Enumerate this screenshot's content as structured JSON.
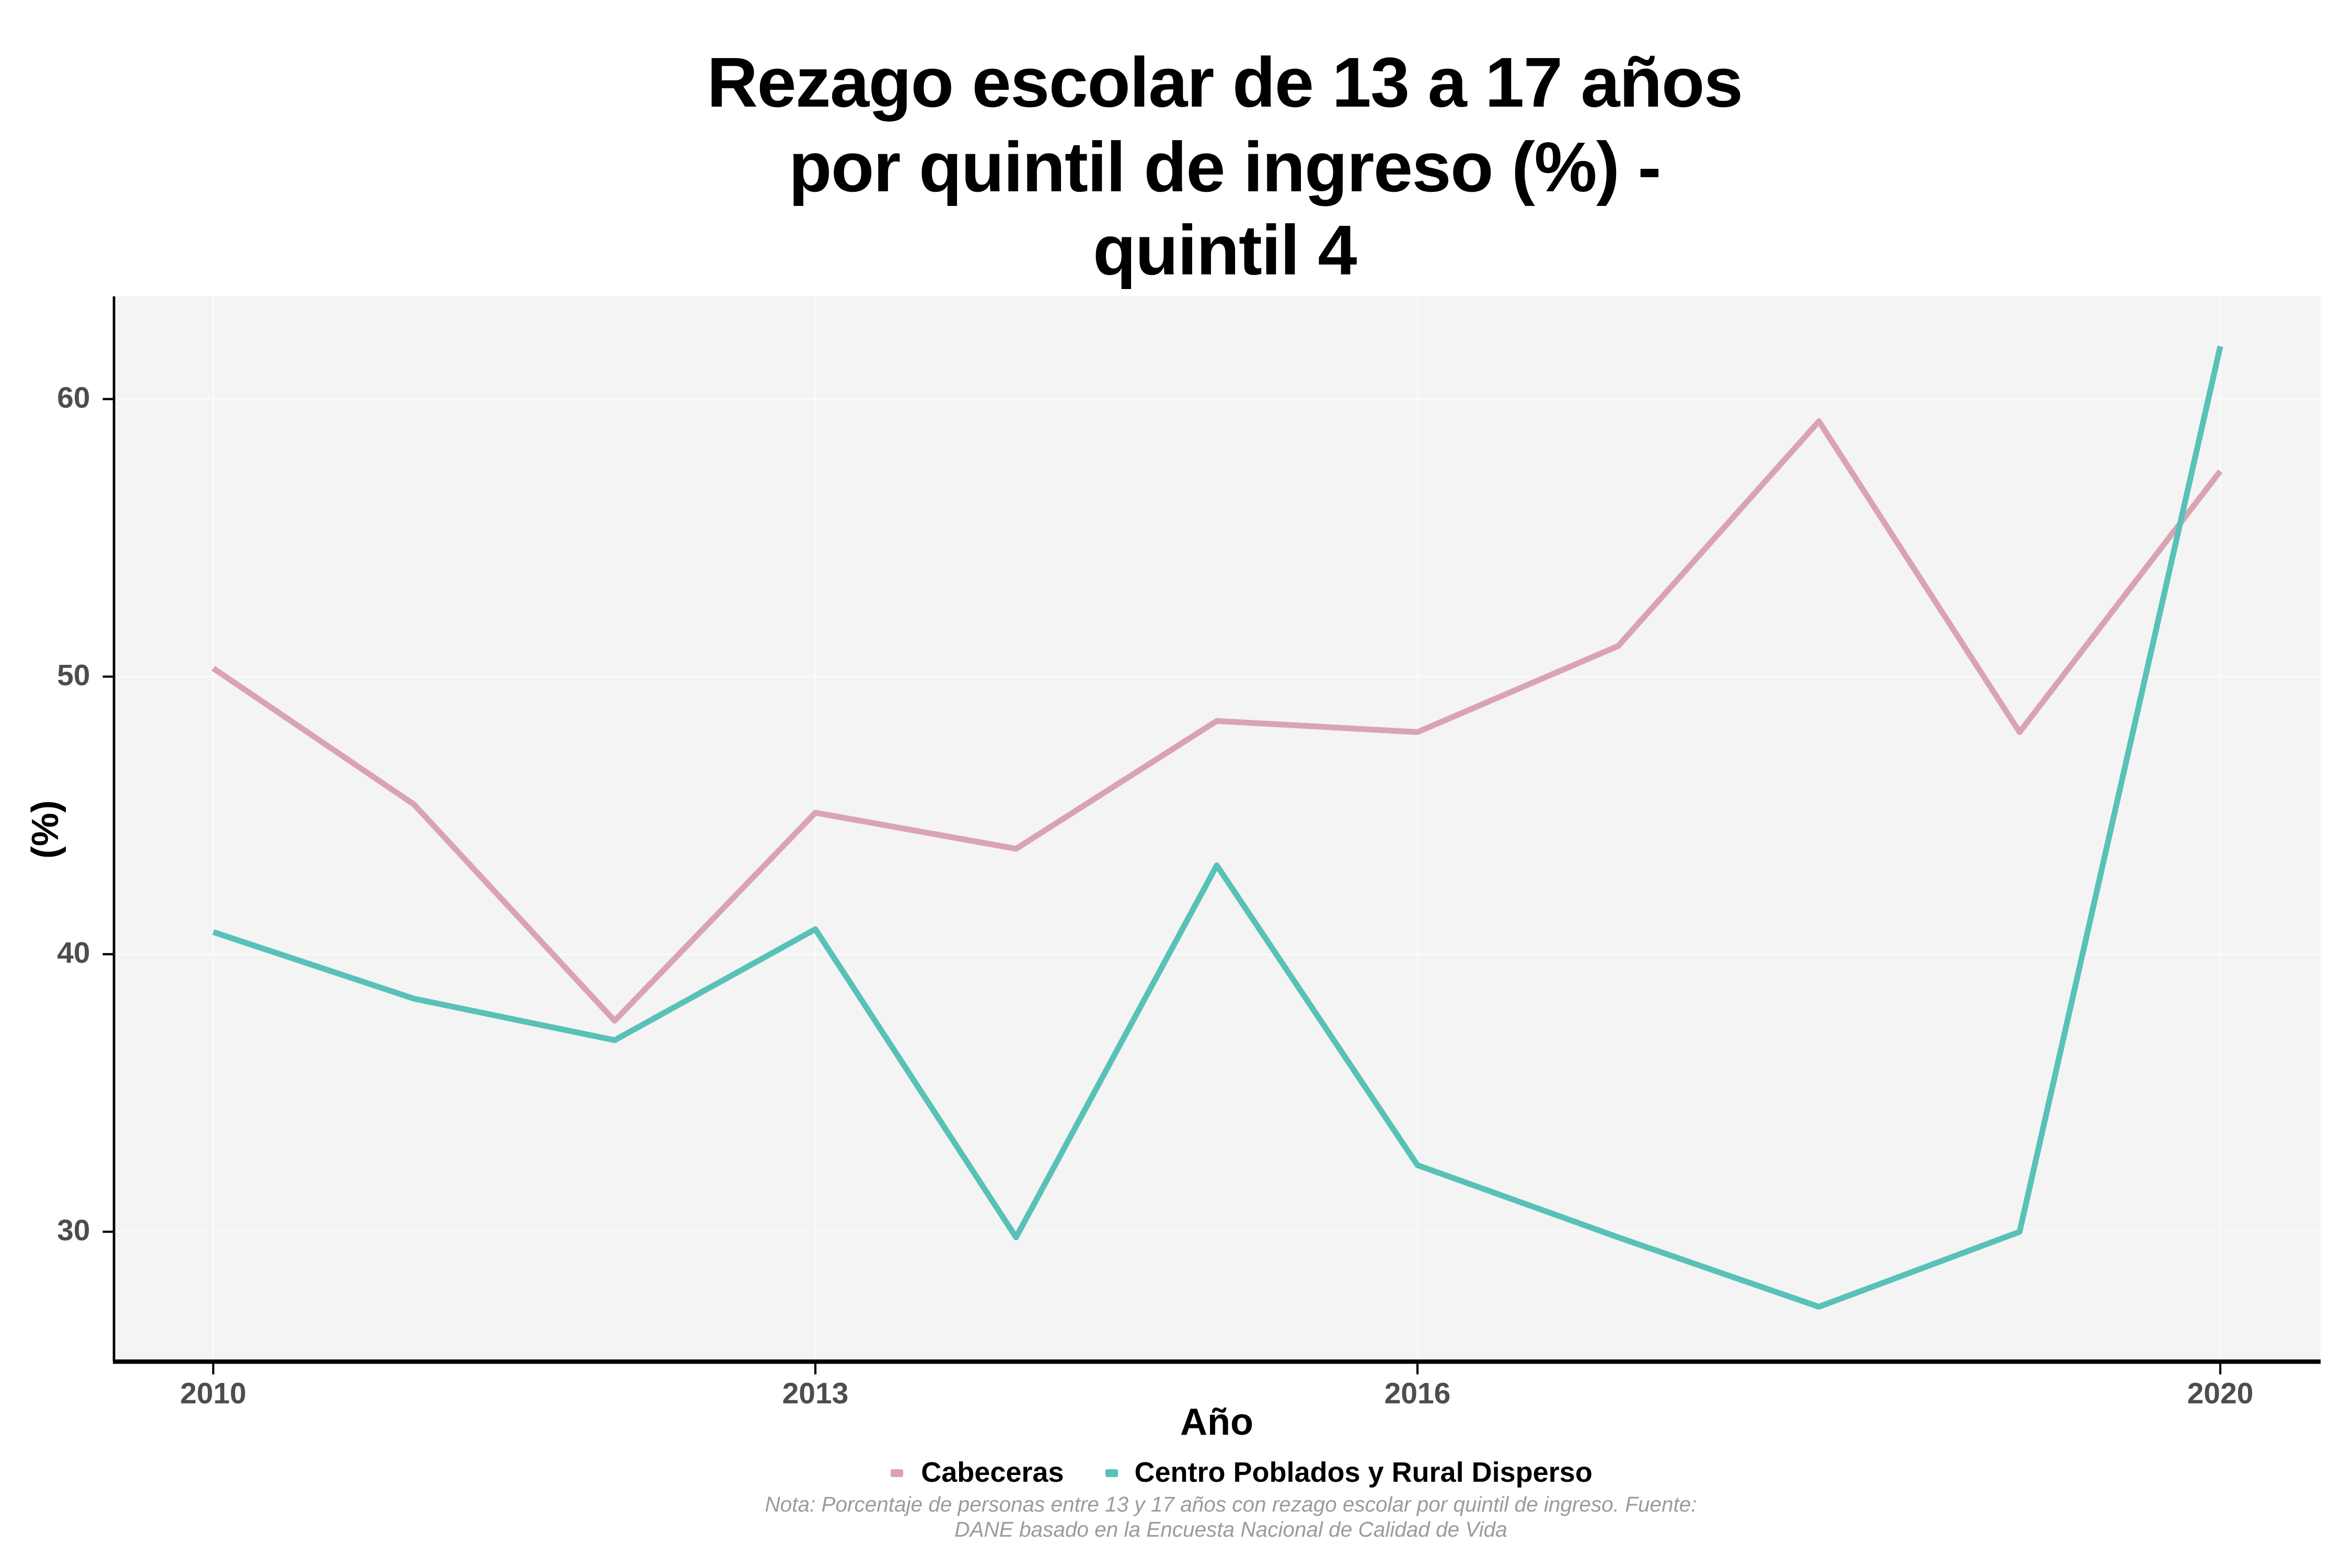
{
  "chart_data": {
    "type": "line",
    "title": "Rezago escolar de 13 a 17 años por quintil de ingreso (%) - quintil 4",
    "title_lines": [
      "Rezago escolar de 13 a 17 años",
      "por quintil de ingreso (%) -",
      "quintil 4"
    ],
    "xlabel": "Año",
    "ylabel": "(%)",
    "x": [
      2010,
      2011,
      2012,
      2013,
      2014,
      2015,
      2016,
      2017,
      2018,
      2019,
      2020
    ],
    "series": [
      {
        "name": "Cabeceras",
        "color": "#DAA3B3",
        "values": [
          50.3,
          45.4,
          37.6,
          45.1,
          43.8,
          48.4,
          48.0,
          51.1,
          59.2,
          48.0,
          57.4
        ]
      },
      {
        "name": "Centro Poblados y Rural Disperso",
        "color": "#58C1B8",
        "values": [
          40.8,
          38.4,
          36.9,
          40.9,
          29.8,
          43.2,
          32.4,
          29.8,
          27.3,
          30.0,
          61.9
        ]
      }
    ],
    "x_ticks": [
      2010,
      2013,
      2016,
      2020
    ],
    "y_ticks": [
      30,
      40,
      50,
      60
    ],
    "xlim": [
      2009.5,
      2020.5
    ],
    "ylim": [
      25.4,
      63.7
    ],
    "grid": true,
    "legend_position": "bottom",
    "note_lines": [
      "Nota: Porcentaje de personas entre 13 y 17 años con rezago escolar por quintil de ingreso. Fuente:",
      "DANE basado en la Encuesta Nacional de Calidad de Vida"
    ],
    "style": {
      "panel_background": "#F4F4F4",
      "gridline_color": "#FAFAFA",
      "axis_line_color": "#000000",
      "tick_label_color": "#4d4d4d",
      "note_color": "#9b9b9b"
    }
  }
}
